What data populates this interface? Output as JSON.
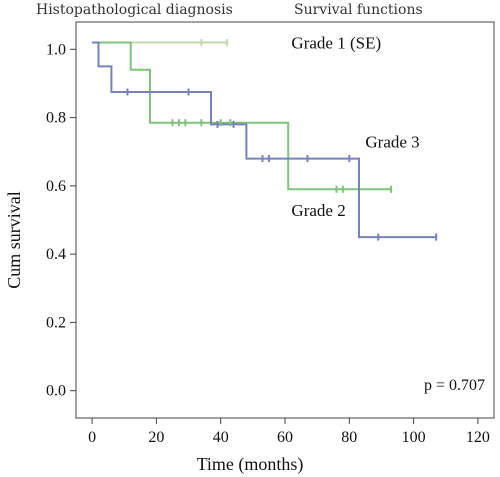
{
  "header": {
    "left": "Histopathological diagnosis",
    "right": "Survival functions"
  },
  "chart_data": {
    "type": "line",
    "subtype": "kaplan-meier",
    "xlabel": "Time (months)",
    "ylabel": "Cum survival",
    "xlim": [
      -5,
      125
    ],
    "ylim": [
      -0.08,
      1.08
    ],
    "xticks": [
      0,
      20,
      40,
      60,
      80,
      100,
      120
    ],
    "yticks": [
      0.0,
      0.2,
      0.4,
      0.6,
      0.8,
      1.0
    ],
    "ytick_labels": [
      "0.0",
      "0.2",
      "0.4",
      "0.6",
      "0.8",
      "1.0"
    ],
    "annotation": "p = 0.707",
    "series": [
      {
        "name": "Grade 1 (SE)",
        "color": "#c6d9a4",
        "steps": [
          [
            0,
            1.02
          ],
          [
            42,
            1.02
          ]
        ],
        "censored": [
          [
            34,
            1.02
          ],
          [
            42,
            1.02
          ]
        ],
        "label_at": [
          62,
          1.02
        ]
      },
      {
        "name": "Grade 2",
        "color": "#7dc47a",
        "steps": [
          [
            0,
            1.02
          ],
          [
            12,
            1.02
          ],
          [
            12,
            0.94
          ],
          [
            18,
            0.94
          ],
          [
            18,
            0.785
          ],
          [
            61,
            0.785
          ],
          [
            61,
            0.59
          ],
          [
            93,
            0.59
          ]
        ],
        "censored": [
          [
            25,
            0.785
          ],
          [
            27,
            0.785
          ],
          [
            29,
            0.785
          ],
          [
            34,
            0.785
          ],
          [
            40,
            0.785
          ],
          [
            43,
            0.785
          ],
          [
            76,
            0.59
          ],
          [
            78,
            0.59
          ],
          [
            93,
            0.59
          ]
        ],
        "label_at": [
          62,
          0.53
        ]
      },
      {
        "name": "Grade 3",
        "color": "#7681bd",
        "steps": [
          [
            0,
            1.02
          ],
          [
            2,
            1.02
          ],
          [
            2,
            0.95
          ],
          [
            6,
            0.95
          ],
          [
            6,
            0.875
          ],
          [
            37,
            0.875
          ],
          [
            37,
            0.78
          ],
          [
            48,
            0.78
          ],
          [
            48,
            0.68
          ],
          [
            83,
            0.68
          ],
          [
            83,
            0.45
          ],
          [
            107,
            0.45
          ]
        ],
        "censored": [
          [
            11,
            0.875
          ],
          [
            30,
            0.875
          ],
          [
            39,
            0.78
          ],
          [
            44,
            0.78
          ],
          [
            53,
            0.68
          ],
          [
            55,
            0.68
          ],
          [
            67,
            0.68
          ],
          [
            80,
            0.68
          ],
          [
            89,
            0.45
          ],
          [
            107,
            0.45
          ]
        ],
        "label_at": [
          85,
          0.73
        ]
      }
    ]
  }
}
